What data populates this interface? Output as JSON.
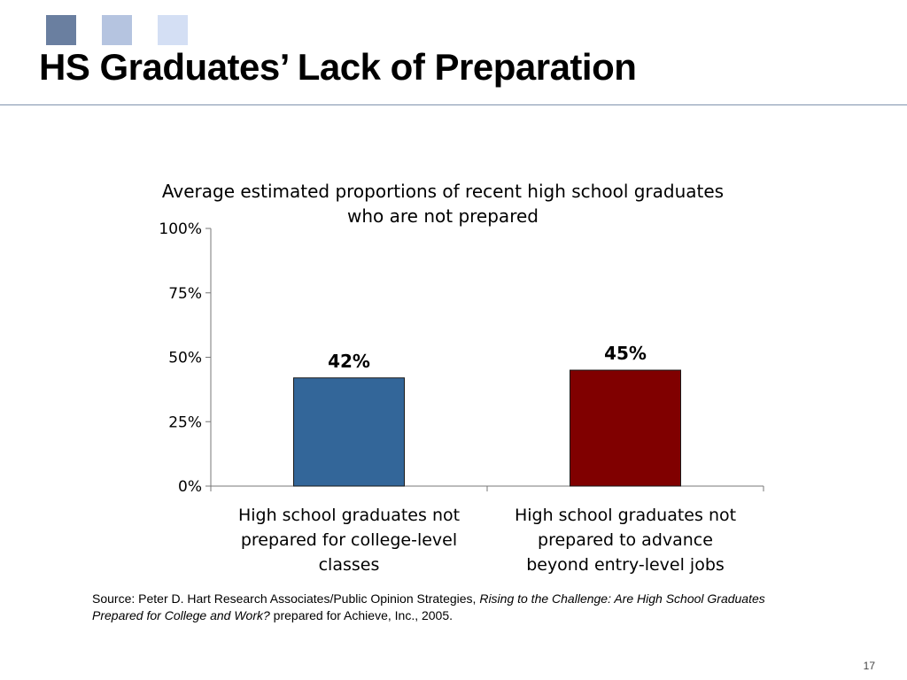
{
  "slide": {
    "title": "HS Graduates’ Lack of Preparation",
    "decor_squares": [
      "#6a7fa0",
      "#b5c4e0",
      "#d4dff4"
    ],
    "page_number": "17"
  },
  "source": {
    "prefix": "Source: Peter D. Hart Research Associates/Public Opinion Strategies, ",
    "italic": "Rising to the Challenge: Are High School Graduates Prepared for College and Work?",
    "suffix": " prepared for Achieve, Inc., 2005."
  },
  "chart_data": {
    "type": "bar",
    "title": "Average estimated proportions of recent high school graduates who are not prepared",
    "categories": [
      [
        "High school graduates not",
        "prepared for college-level",
        "classes"
      ],
      [
        "High school graduates not",
        "prepared to advance",
        "beyond entry-level jobs"
      ]
    ],
    "values": [
      42,
      45
    ],
    "data_labels": [
      "42%",
      "45%"
    ],
    "colors": [
      "#336699",
      "#800000"
    ],
    "ylim": [
      0,
      100
    ],
    "yticks": [
      0,
      25,
      50,
      75,
      100
    ],
    "ytick_labels": [
      "0%",
      "25%",
      "50%",
      "75%",
      "100%"
    ],
    "grid": false,
    "xlabel": "",
    "ylabel": ""
  }
}
